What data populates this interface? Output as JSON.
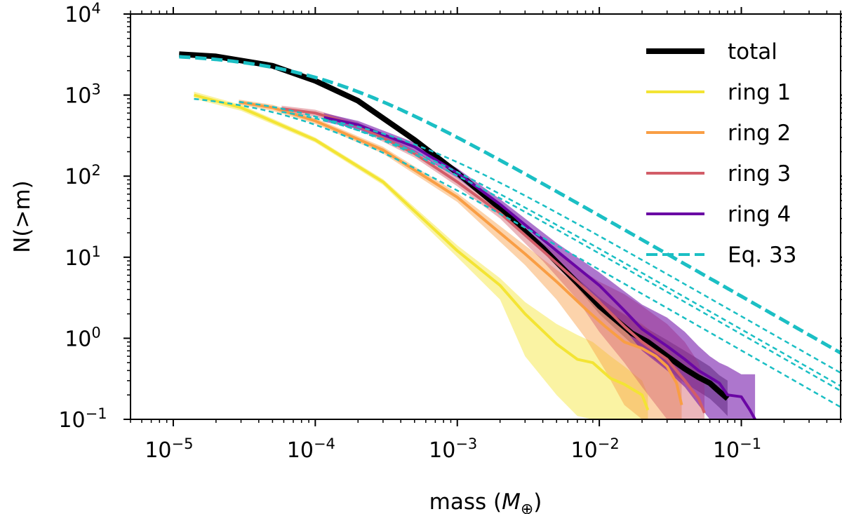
{
  "chart_data": {
    "type": "line",
    "scale": {
      "x": "log",
      "y": "log"
    },
    "xlabel": "mass (",
    "xlabel_symbol": "M",
    "xlabel_subscript": "⊕",
    "xlabel_close": ")",
    "ylabel": "N(>m)",
    "xlim": [
      5e-06,
      0.5
    ],
    "ylim": [
      0.1,
      10000
    ],
    "x_ticks": [
      {
        "value": 1e-05,
        "base": "10",
        "exp": "−5"
      },
      {
        "value": 0.0001,
        "base": "10",
        "exp": "−4"
      },
      {
        "value": 0.001,
        "base": "10",
        "exp": "−3"
      },
      {
        "value": 0.01,
        "base": "10",
        "exp": "−2"
      },
      {
        "value": 0.1,
        "base": "10",
        "exp": "−1"
      }
    ],
    "y_ticks": [
      {
        "value": 0.1,
        "base": "10",
        "exp": "−1"
      },
      {
        "value": 1,
        "base": "10",
        "exp": "0"
      },
      {
        "value": 10,
        "base": "10",
        "exp": "1"
      },
      {
        "value": 100,
        "base": "10",
        "exp": "2"
      },
      {
        "value": 1000,
        "base": "10",
        "exp": "3"
      },
      {
        "value": 10000,
        "base": "10",
        "exp": "4"
      }
    ],
    "legend_position": "top-right",
    "legend": [
      {
        "label": "total",
        "color": "#000000",
        "style": "solid",
        "width": 8
      },
      {
        "label": "ring 1",
        "color": "#f3e434",
        "style": "solid",
        "width": 4
      },
      {
        "label": "ring 2",
        "color": "#f99e44",
        "style": "solid",
        "width": 4
      },
      {
        "label": "ring 3",
        "color": "#d25d68",
        "style": "solid",
        "width": 4
      },
      {
        "label": "ring 4",
        "color": "#6a06a4",
        "style": "solid",
        "width": 4
      },
      {
        "label": "Eq. 33",
        "color": "#1bbfc4",
        "style": "dashed",
        "width": 4
      }
    ],
    "series": [
      {
        "name": "total",
        "color": "#000000",
        "width": 8,
        "band_color": "#555555",
        "band_opacity": 0.55,
        "x": [
          1.1e-05,
          2e-05,
          5e-05,
          0.0001,
          0.0002,
          0.0005,
          0.001,
          0.002,
          0.004,
          0.007,
          0.01,
          0.013,
          0.017,
          0.022,
          0.03,
          0.04,
          0.05,
          0.06,
          0.07,
          0.08
        ],
        "y": [
          3200,
          3000,
          2300,
          1500,
          850,
          280,
          110,
          40,
          13,
          4.8,
          2.5,
          1.7,
          1.15,
          0.9,
          0.6,
          0.42,
          0.33,
          0.28,
          0.22,
          0.18
        ],
        "y_hi": [
          3300,
          3100,
          2400,
          1560,
          880,
          290,
          115,
          42,
          14,
          5.5,
          3.2,
          2.3,
          1.7,
          1.3,
          0.95,
          0.7,
          0.55,
          0.45,
          0.35,
          0.3
        ],
        "y_lo": [
          3100,
          2900,
          2200,
          1440,
          820,
          270,
          105,
          38,
          12,
          4.2,
          2.0,
          1.3,
          0.85,
          0.65,
          0.42,
          0.28,
          0.22,
          0.18,
          0.14,
          0.11
        ]
      },
      {
        "name": "ring 1",
        "color": "#f3e434",
        "width": 4,
        "band_color": "#f3e434",
        "band_opacity": 0.45,
        "x": [
          1.4e-05,
          3e-05,
          0.0001,
          0.0003,
          0.001,
          0.002,
          0.003,
          0.005,
          0.007,
          0.009,
          0.012,
          0.015,
          0.02,
          0.022
        ],
        "y": [
          1000,
          700,
          280,
          85,
          12,
          4.5,
          2.0,
          0.85,
          0.55,
          0.5,
          0.32,
          0.27,
          0.2,
          0.13
        ],
        "y_hi": [
          1100,
          760,
          300,
          92,
          14,
          5.5,
          2.8,
          1.5,
          1.1,
          0.9,
          0.6,
          0.45,
          0.3,
          0.2
        ],
        "y_lo": [
          900,
          640,
          260,
          78,
          10,
          3.0,
          0.6,
          0.2,
          0.11,
          0.1,
          0.1,
          0.1,
          0.1,
          0.1
        ]
      },
      {
        "name": "ring 2",
        "color": "#f99e44",
        "width": 4,
        "band_color": "#f99e44",
        "band_opacity": 0.45,
        "x": [
          2.9e-05,
          5e-05,
          0.0001,
          0.0003,
          0.001,
          0.003,
          0.005,
          0.008,
          0.011,
          0.015,
          0.02,
          0.025,
          0.03,
          0.035,
          0.038
        ],
        "y": [
          820,
          700,
          480,
          210,
          55,
          11,
          5.0,
          2.3,
          1.4,
          0.9,
          0.75,
          0.6,
          0.45,
          0.28,
          0.15
        ],
        "y_hi": [
          880,
          760,
          520,
          230,
          62,
          14,
          7.0,
          3.8,
          2.8,
          2.0,
          1.5,
          1.1,
          0.8,
          0.5,
          0.3
        ],
        "y_lo": [
          760,
          640,
          440,
          190,
          48,
          8,
          3.0,
          1.0,
          0.4,
          0.15,
          0.1,
          0.1,
          0.1,
          0.1,
          0.1
        ]
      },
      {
        "name": "ring 3",
        "color": "#d25d68",
        "width": 4,
        "band_color": "#d25d68",
        "band_opacity": 0.45,
        "x": [
          5.8e-05,
          0.0001,
          0.0002,
          0.0005,
          0.001,
          0.002,
          0.004,
          0.007,
          0.01,
          0.015,
          0.02,
          0.03,
          0.04,
          0.05,
          0.055
        ],
        "y": [
          680,
          600,
          420,
          190,
          85,
          35,
          12,
          5.0,
          2.8,
          1.4,
          0.9,
          0.55,
          0.3,
          0.18,
          0.12
        ],
        "y_hi": [
          740,
          660,
          460,
          210,
          95,
          40,
          15,
          7.5,
          5.0,
          3.5,
          2.5,
          1.5,
          0.9,
          0.5,
          0.3
        ],
        "y_lo": [
          620,
          540,
          380,
          170,
          75,
          30,
          9,
          3.0,
          1.2,
          0.5,
          0.25,
          0.1,
          0.1,
          0.1,
          0.1
        ]
      },
      {
        "name": "ring 4",
        "color": "#6a06a4",
        "width": 4,
        "band_color": "#6a06a4",
        "band_opacity": 0.55,
        "x": [
          0.000115,
          0.0002,
          0.0005,
          0.001,
          0.002,
          0.005,
          0.01,
          0.015,
          0.02,
          0.03,
          0.04,
          0.05,
          0.06,
          0.07,
          0.08,
          0.1,
          0.115,
          0.125
        ],
        "y": [
          530,
          430,
          230,
          110,
          45,
          12,
          4.5,
          2.2,
          1.3,
          0.8,
          0.55,
          0.4,
          0.33,
          0.28,
          0.2,
          0.19,
          0.13,
          0.1
        ],
        "y_hi": [
          600,
          480,
          260,
          125,
          52,
          15,
          6.5,
          3.8,
          2.6,
          1.8,
          1.2,
          0.8,
          0.6,
          0.5,
          0.45,
          0.36,
          0.36,
          0.36
        ],
        "y_lo": [
          470,
          380,
          200,
          95,
          38,
          9,
          3.0,
          1.3,
          0.7,
          0.4,
          0.25,
          0.15,
          0.1,
          0.1,
          0.1,
          0.1,
          0.1,
          0.1
        ]
      }
    ],
    "fits": [
      {
        "name": "Eq. 33 total",
        "color": "#1bbfc4",
        "N0": 3300,
        "m0": 0.0001,
        "x_start": 1.1e-05,
        "dashed_thick": true
      },
      {
        "name": "Eq. 33 ring 1",
        "color": "#1bbfc4",
        "N0": 1090,
        "m0": 6.5e-05,
        "x_start": 1.4e-05
      },
      {
        "name": "Eq. 33 ring 2",
        "color": "#1bbfc4",
        "N0": 1050,
        "m0": 0.000107,
        "x_start": 2.9e-05
      },
      {
        "name": "Eq. 33 ring 3",
        "color": "#1bbfc4",
        "N0": 860,
        "m0": 0.00015,
        "x_start": 5.8e-05
      },
      {
        "name": "Eq. 33 ring 4",
        "color": "#1bbfc4",
        "N0": 720,
        "m0": 0.00026,
        "x_start": 0.000115
      }
    ]
  }
}
